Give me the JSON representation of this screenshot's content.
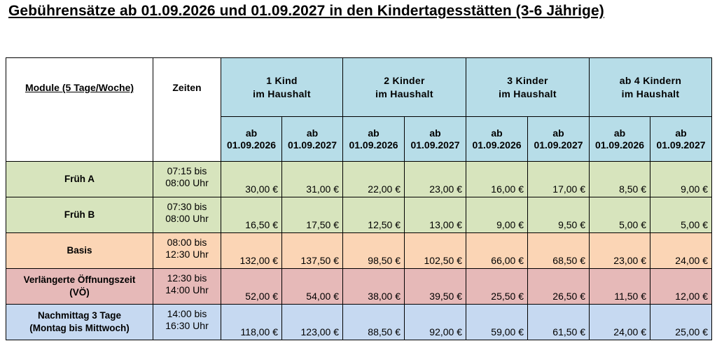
{
  "title": "Gebührensätze ab 01.09.2026 und 01.09.2027 in den Kindertagesstätten (3-6 Jährige)",
  "table": {
    "header_module": "Module (5 Tage/Woche)",
    "header_zeiten": "Zeiten",
    "groups": [
      {
        "line1": "1 Kind",
        "line2": "im Haushalt"
      },
      {
        "line1": "2 Kinder",
        "line2": "im Haushalt"
      },
      {
        "line1": "3 Kinder",
        "line2": "im Haushalt"
      },
      {
        "line1": "ab 4 Kindern",
        "line2": "im Haushalt"
      }
    ],
    "date_headers": [
      {
        "line1": "ab",
        "line2": "01.09.2026"
      },
      {
        "line1": "ab",
        "line2": "01.09.2027"
      }
    ],
    "rows": [
      {
        "name_line1": "Früh A",
        "name_line2": "",
        "time_line1": "07:15 bis",
        "time_line2": "08:00 Uhr",
        "color": "#d7e4bd",
        "fees": [
          "30,00 €",
          "31,00 €",
          "22,00 €",
          "23,00 €",
          "16,00 €",
          "17,00 €",
          "8,50 €",
          "9,00 €"
        ]
      },
      {
        "name_line1": "Früh B",
        "name_line2": "",
        "time_line1": "07:30 bis",
        "time_line2": "08:00 Uhr",
        "color": "#d7e4bd",
        "fees": [
          "16,50 €",
          "17,50 €",
          "12,50 €",
          "13,00 €",
          "9,00 €",
          "9,50 €",
          "5,00 €",
          "5,00 €"
        ]
      },
      {
        "name_line1": "Basis",
        "name_line2": "",
        "time_line1": "08:00 bis",
        "time_line2": "12:30 Uhr",
        "color": "#fbd5b5",
        "fees": [
          "132,00 €",
          "137,50 €",
          "98,50 €",
          "102,50 €",
          "66,00 €",
          "68,50 €",
          "23,00 €",
          "24,00 €"
        ]
      },
      {
        "name_line1": "Verlängerte Öffnungszeit",
        "name_line2": "(VÖ)",
        "time_line1": "12:30 bis",
        "time_line2": "14:00 Uhr",
        "color": "#e6b9b8",
        "fees": [
          "52,00 €",
          "54,00 €",
          "38,00 €",
          "39,50 €",
          "25,50 €",
          "26,50 €",
          "11,50 €",
          "12,00 €"
        ]
      },
      {
        "name_line1": "Nachmittag 3 Tage",
        "name_line2": "(Montag bis Mittwoch)",
        "time_line1": "14:00 bis",
        "time_line2": "16:30 Uhr",
        "color": "#c6d9f1",
        "fees": [
          "118,00 €",
          "123,00 €",
          "88,50 €",
          "92,00 €",
          "59,00 €",
          "61,50 €",
          "24,00 €",
          "25,00 €"
        ]
      }
    ]
  }
}
